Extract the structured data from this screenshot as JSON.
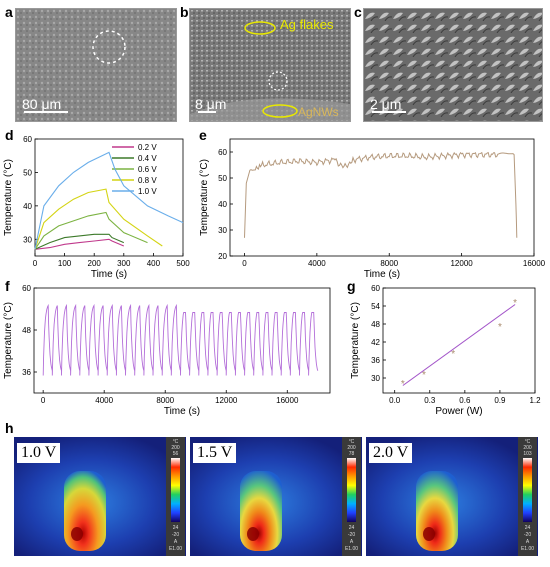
{
  "figure": {
    "panel_labels": [
      "a",
      "b",
      "c",
      "d",
      "e",
      "f",
      "g",
      "h"
    ],
    "sem": {
      "a": {
        "scale": "80 μm"
      },
      "b": {
        "scale": "8 μm",
        "annot_flakes": "Ag flakes",
        "annot_nws": "AgNWs"
      },
      "c": {
        "scale": "2 μm"
      }
    },
    "thermal": [
      {
        "label": "1.0 V",
        "cbar_unit": "°C",
        "cbar_max": "200",
        "cbar_top": "56",
        "cbar_bot": "24",
        "cbar_min": "-20",
        "cbar_a": "A",
        "cbar_e": "E1.00"
      },
      {
        "label": "1.5 V",
        "cbar_unit": "°C",
        "cbar_max": "200",
        "cbar_top": "78",
        "cbar_bot": "24",
        "cbar_min": "-20",
        "cbar_a": "A",
        "cbar_e": "E1.00"
      },
      {
        "label": "2.0 V",
        "cbar_unit": "°C",
        "cbar_max": "200",
        "cbar_top": "103",
        "cbar_bot": "24",
        "cbar_min": "-20",
        "cbar_a": "A",
        "cbar_e": "E1.00"
      }
    ]
  },
  "chart_data": [
    {
      "id": "d",
      "type": "line",
      "xlabel": "Time (s)",
      "ylabel": "Temperature (°C)",
      "xlim": [
        0,
        500
      ],
      "ylim": [
        25,
        60
      ],
      "xticks": [
        0,
        100,
        200,
        300,
        400,
        500
      ],
      "yticks": [
        30,
        40,
        50,
        60
      ],
      "legend_position": "top-right",
      "series": [
        {
          "name": "0.2 V",
          "color": "#c0398c",
          "x": [
            0,
            50,
            100,
            150,
            200,
            250,
            260,
            300
          ],
          "y": [
            27,
            27.5,
            28.5,
            29,
            29.5,
            30,
            29.5,
            28
          ]
        },
        {
          "name": "0.4 V",
          "color": "#3d7a2a",
          "x": [
            0,
            50,
            100,
            150,
            200,
            250,
            260,
            300
          ],
          "y": [
            27,
            29,
            30.5,
            31,
            31.5,
            31.5,
            30.5,
            29
          ]
        },
        {
          "name": "0.6 V",
          "color": "#7cb342",
          "x": [
            0,
            30,
            80,
            130,
            180,
            240,
            250,
            300,
            380
          ],
          "y": [
            27,
            31,
            34,
            35.5,
            37,
            38,
            36,
            32,
            29
          ]
        },
        {
          "name": "0.8 V",
          "color": "#d4d414",
          "x": [
            0,
            30,
            80,
            130,
            180,
            240,
            250,
            300,
            380,
            430
          ],
          "y": [
            27,
            35,
            39,
            42,
            44,
            45,
            41,
            36,
            31,
            28
          ]
        },
        {
          "name": "1.0 V",
          "color": "#6aaeea",
          "x": [
            0,
            30,
            80,
            130,
            180,
            250,
            270,
            300,
            380,
            450,
            500
          ],
          "y": [
            27,
            40,
            46,
            50,
            53,
            56,
            51,
            46,
            40,
            37,
            35
          ]
        }
      ]
    },
    {
      "id": "e",
      "type": "line",
      "xlabel": "Time (s)",
      "ylabel": "Temperature (°C)",
      "xlim": [
        -800,
        16000
      ],
      "ylim": [
        20,
        65
      ],
      "xticks": [
        0,
        4000,
        8000,
        12000,
        16000
      ],
      "yticks": [
        20,
        30,
        40,
        50,
        60
      ],
      "series": [
        {
          "color": "#b59a7e",
          "x": [
            0,
            100,
            300,
            600,
            1000,
            2000,
            3000,
            4000,
            5000,
            5500,
            6000,
            7000,
            8000,
            9000,
            10000,
            11000,
            12000,
            13000,
            14000,
            14900,
            15000,
            15050
          ],
          "y": [
            27,
            48,
            53,
            54,
            55,
            56,
            56.5,
            56,
            57,
            54,
            57,
            58,
            58.5,
            58.5,
            58,
            58.5,
            59,
            59,
            59,
            59,
            40,
            27
          ]
        }
      ]
    },
    {
      "id": "f",
      "type": "line",
      "xlabel": "Time (s)",
      "ylabel": "Temperature (°C)",
      "xlim": [
        -600,
        18800
      ],
      "ylim": [
        30,
        60
      ],
      "xticks": [
        0,
        4000,
        8000,
        12000,
        16000
      ],
      "yticks": [
        36,
        48,
        60
      ],
      "cycles": 30,
      "cycle_period": 600,
      "peak": 55,
      "trough": 35,
      "series": [
        {
          "color": "#b36ed9",
          "label_peak": 55,
          "label_trough": 35
        }
      ]
    },
    {
      "id": "g",
      "type": "scatter",
      "xlabel": "Power (W)",
      "ylabel": "Temperature (°C)",
      "xlim": [
        -0.1,
        1.2
      ],
      "ylim": [
        25,
        60
      ],
      "xticks": [
        0.0,
        0.3,
        0.6,
        0.9,
        1.2
      ],
      "yticks": [
        30,
        36,
        42,
        48,
        54,
        60
      ],
      "points": {
        "x": [
          0.07,
          0.25,
          0.5,
          0.9,
          1.03
        ],
        "y": [
          28,
          31,
          38,
          47,
          55
        ]
      },
      "fit": {
        "x": [
          0.07,
          1.03
        ],
        "y": [
          27.5,
          54.5
        ],
        "color": "#a355c9"
      }
    }
  ]
}
